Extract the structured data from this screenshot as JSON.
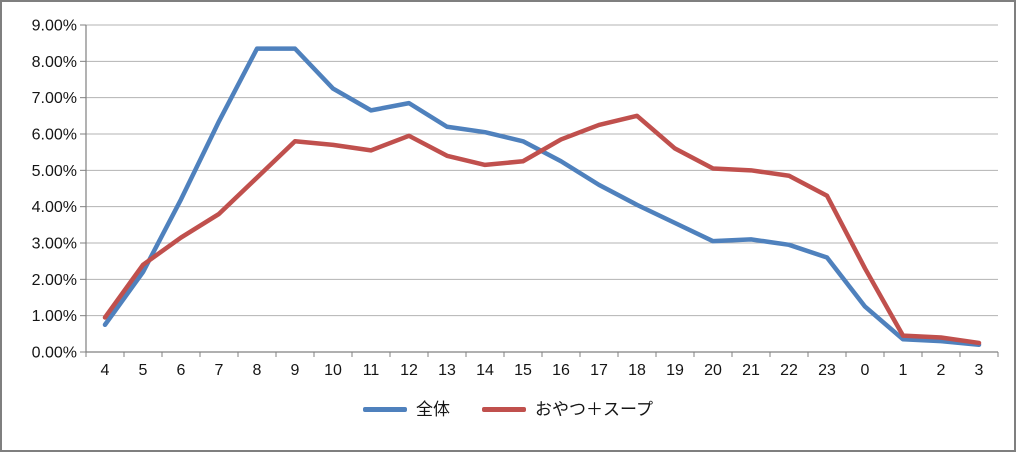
{
  "chart_data": {
    "type": "line",
    "title": "",
    "xlabel": "",
    "ylabel": "",
    "ylim": [
      0,
      9
    ],
    "grid": true,
    "legend_position": "bottom",
    "y_tick_labels": [
      "0.00%",
      "1.00%",
      "2.00%",
      "3.00%",
      "4.00%",
      "5.00%",
      "6.00%",
      "7.00%",
      "8.00%",
      "9.00%"
    ],
    "categories": [
      "4",
      "5",
      "6",
      "7",
      "8",
      "9",
      "10",
      "11",
      "12",
      "13",
      "14",
      "15",
      "16",
      "17",
      "18",
      "19",
      "20",
      "21",
      "22",
      "23",
      "0",
      "1",
      "2",
      "3"
    ],
    "series": [
      {
        "name": "全体",
        "color": "#4F81BD",
        "values": [
          0.75,
          2.2,
          4.2,
          6.35,
          8.35,
          8.35,
          7.25,
          6.65,
          6.85,
          6.2,
          6.05,
          5.8,
          5.25,
          4.6,
          4.05,
          3.55,
          3.05,
          3.1,
          2.95,
          2.6,
          1.25,
          0.35,
          0.3,
          0.2
        ]
      },
      {
        "name": "おやつ＋スープ",
        "color": "#C0504D",
        "values": [
          0.95,
          2.4,
          3.15,
          3.8,
          4.8,
          5.8,
          5.7,
          5.55,
          5.95,
          5.4,
          5.15,
          5.25,
          5.85,
          6.25,
          6.5,
          5.6,
          5.05,
          5.0,
          4.85,
          4.3,
          2.3,
          0.45,
          0.4,
          0.25
        ]
      }
    ],
    "axis_color": "#808080",
    "gridline_color": "#b3b3b3"
  }
}
